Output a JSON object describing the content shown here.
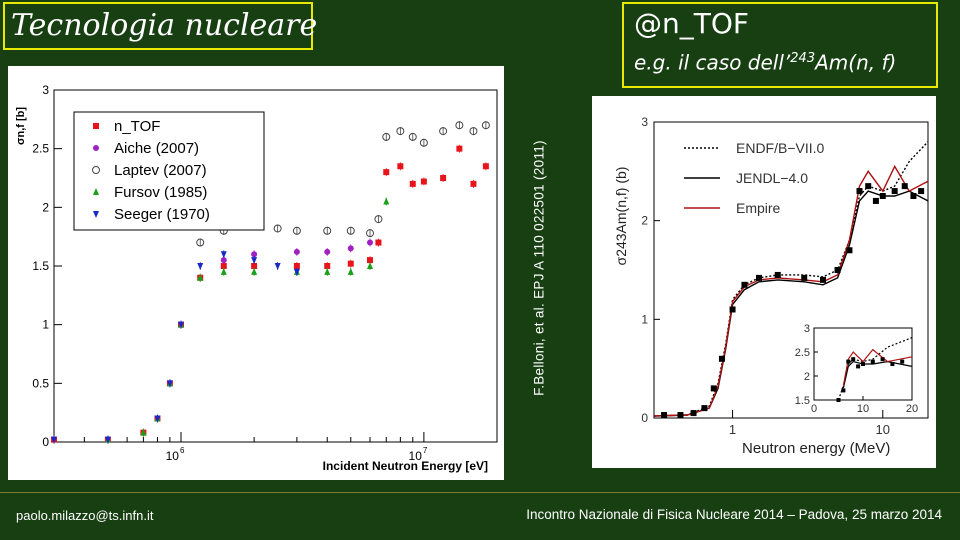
{
  "header": {
    "title": "Tecnologia nucleare",
    "facility": "@n_TOF",
    "subtitle_prefix": "e.g. il caso dell’",
    "subtitle_mass": "243",
    "subtitle_suffix": "Am(n, f)"
  },
  "citation": "F.Belloni, et al. EPJ A 110 022501 (2011)",
  "footer": {
    "email": "paolo.milazzo@ts.infn.it",
    "event": "Incontro Nazionale di Fisica Nucleare 2014 – Padova, 25 marzo 2014"
  },
  "chart_data": [
    {
      "type": "scatter",
      "xlabel": "Incident Neutron Energy [eV]",
      "ylabel": "σn,f [b]",
      "xscale": "log",
      "xlim": [
        300000,
        20000000
      ],
      "ylim": [
        0,
        3
      ],
      "yticks": [
        "0",
        "0.5",
        "1",
        "1.5",
        "2",
        "2.5",
        "3"
      ],
      "xtick_labels": [
        "10",
        "6",
        "10",
        "7"
      ],
      "legend_position": "top-left",
      "series": [
        {
          "name": "n_TOF",
          "color": "#e8141c",
          "marker": "square",
          "x": [
            0.3,
            0.5,
            0.7,
            0.8,
            0.9,
            1.0,
            1.2,
            1.5,
            2,
            3,
            4,
            5,
            6,
            6.5,
            7,
            8,
            9,
            10,
            12,
            14,
            16,
            18
          ],
          "y": [
            0.02,
            0.02,
            0.08,
            0.2,
            0.5,
            1.0,
            1.4,
            1.5,
            1.5,
            1.5,
            1.5,
            1.52,
            1.55,
            1.7,
            2.3,
            2.35,
            2.2,
            2.22,
            2.25,
            2.5,
            2.2,
            2.35
          ]
        },
        {
          "name": "Aiche (2007)",
          "color": "#a020c0",
          "marker": "circle",
          "x": [
            1.5,
            2,
            3,
            4,
            5,
            6
          ],
          "y": [
            1.55,
            1.6,
            1.62,
            1.62,
            1.65,
            1.7
          ]
        },
        {
          "name": "Laptev (2007)",
          "color": "#444444",
          "marker": "open-circle",
          "x": [
            1.2,
            1.5,
            2,
            2.5,
            3,
            4,
            5,
            6,
            6.5,
            7,
            8,
            9,
            10,
            12,
            14,
            16,
            18
          ],
          "y": [
            1.7,
            1.8,
            1.85,
            1.82,
            1.8,
            1.8,
            1.8,
            1.78,
            1.9,
            2.6,
            2.65,
            2.6,
            2.55,
            2.65,
            2.7,
            2.65,
            2.7
          ]
        },
        {
          "name": "Fursov (1985)",
          "color": "#1aa018",
          "marker": "triangle",
          "x": [
            0.5,
            0.7,
            0.8,
            0.9,
            1.0,
            1.2,
            1.5,
            2,
            3,
            4,
            5,
            6,
            7
          ],
          "y": [
            0.02,
            0.08,
            0.2,
            0.5,
            1.0,
            1.4,
            1.45,
            1.45,
            1.45,
            1.45,
            1.45,
            1.5,
            2.05
          ]
        },
        {
          "name": "Seeger (1970)",
          "color": "#1a2ac8",
          "marker": "triangle-down",
          "x": [
            0.3,
            0.5,
            0.8,
            0.9,
            1.0,
            1.2,
            1.5,
            2,
            2.5,
            3
          ],
          "y": [
            0.02,
            0.02,
            0.2,
            0.5,
            1.0,
            1.5,
            1.6,
            1.55,
            1.5,
            1.45
          ]
        }
      ]
    },
    {
      "type": "line",
      "xlabel": "Neutron energy (MeV)",
      "ylabel": "σ243Am(n,f) (b)",
      "xscale": "log",
      "xlim": [
        0.3,
        20
      ],
      "ylim": [
        0,
        3
      ],
      "yticks": [
        "0",
        "1",
        "2",
        "3"
      ],
      "xticks": [
        "1",
        "10"
      ],
      "legend_position": "top-center",
      "series": [
        {
          "name": "ENDF/B−VII.0",
          "style": "dotted",
          "color": "#000000",
          "x": [
            0.3,
            0.5,
            0.7,
            0.8,
            0.9,
            1.0,
            1.2,
            1.5,
            2,
            3,
            4,
            5,
            6,
            7,
            8,
            10,
            12,
            15,
            20
          ],
          "y": [
            0.02,
            0.03,
            0.12,
            0.35,
            0.75,
            1.2,
            1.35,
            1.42,
            1.45,
            1.45,
            1.43,
            1.5,
            1.8,
            2.25,
            2.35,
            2.3,
            2.35,
            2.6,
            2.8
          ]
        },
        {
          "name": "JENDL−4.0",
          "style": "solid",
          "color": "#000000",
          "x": [
            0.3,
            0.5,
            0.7,
            0.8,
            0.9,
            1.0,
            1.2,
            1.5,
            2,
            3,
            4,
            5,
            6,
            7,
            8,
            10,
            12,
            15,
            20
          ],
          "y": [
            0.02,
            0.03,
            0.1,
            0.3,
            0.7,
            1.15,
            1.3,
            1.38,
            1.4,
            1.38,
            1.35,
            1.42,
            1.75,
            2.2,
            2.3,
            2.25,
            2.25,
            2.3,
            2.2
          ]
        },
        {
          "name": "Empire",
          "style": "solid",
          "color": "#b01010",
          "x": [
            0.3,
            0.5,
            0.7,
            0.8,
            0.9,
            1.0,
            1.2,
            1.5,
            2,
            3,
            4,
            5,
            6,
            7,
            8,
            10,
            12,
            15,
            20
          ],
          "y": [
            0.02,
            0.03,
            0.1,
            0.32,
            0.72,
            1.18,
            1.33,
            1.4,
            1.42,
            1.4,
            1.38,
            1.45,
            1.8,
            2.35,
            2.5,
            2.3,
            2.55,
            2.3,
            2.4
          ]
        },
        {
          "name": "data",
          "style": "points",
          "color": "#000000",
          "x": [
            0.35,
            0.45,
            0.55,
            0.65,
            0.75,
            0.85,
            1.0,
            1.2,
            1.5,
            2,
            3,
            4,
            5,
            6,
            7,
            8,
            9,
            10,
            12,
            14,
            16,
            18
          ],
          "y": [
            0.03,
            0.03,
            0.05,
            0.1,
            0.3,
            0.6,
            1.1,
            1.35,
            1.42,
            1.45,
            1.42,
            1.4,
            1.5,
            1.7,
            2.3,
            2.35,
            2.2,
            2.25,
            2.3,
            2.35,
            2.25,
            2.3
          ]
        }
      ],
      "inset": {
        "xlim": [
          0,
          20
        ],
        "ylim": [
          1.5,
          3
        ],
        "yticks": [
          "1.5",
          "2",
          "2.5",
          "3"
        ],
        "xticks": [
          "0",
          "10",
          "20"
        ]
      }
    }
  ]
}
